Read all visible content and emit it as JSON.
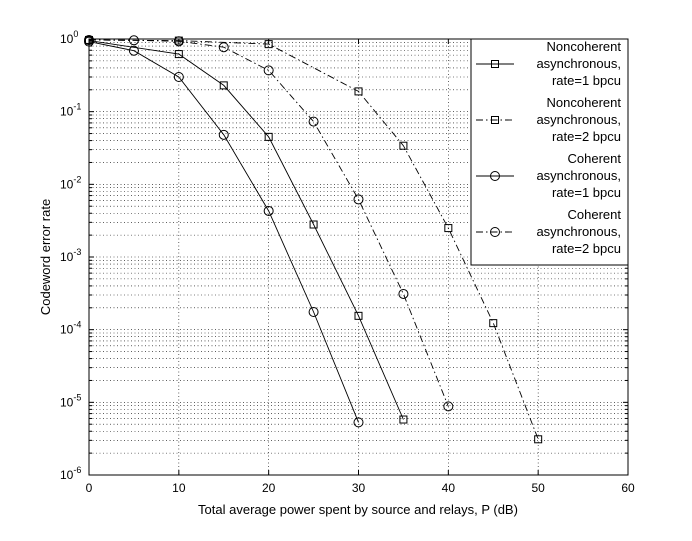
{
  "chart_data": {
    "type": "line",
    "xlabel": "Total average power spent by source and relays, P (dB)",
    "ylabel": "Codeword error rate",
    "xlim": [
      0,
      60
    ],
    "ylim": [
      1e-06,
      1
    ],
    "yscale": "log",
    "grid": true,
    "legend_position": "top-right",
    "x_ticks": [
      "0",
      "10",
      "20",
      "30",
      "40",
      "50",
      "60"
    ],
    "y_ticks": [
      {
        "base": "10",
        "exp": "0"
      },
      {
        "base": "10",
        "exp": "-1"
      },
      {
        "base": "10",
        "exp": "-2"
      },
      {
        "base": "10",
        "exp": "-3"
      },
      {
        "base": "10",
        "exp": "-4"
      },
      {
        "base": "10",
        "exp": "-5"
      },
      {
        "base": "10",
        "exp": "-6"
      }
    ],
    "series": [
      {
        "name_lines": [
          "Noncoherent",
          "asynchronous,",
          "rate=1 bpcu"
        ],
        "marker": "square",
        "dash": "solid",
        "x": [
          0,
          10,
          15,
          20,
          25,
          30,
          35
        ],
        "y": [
          0.95,
          0.62,
          0.23,
          0.045,
          0.0028,
          0.000155,
          5.8e-06
        ]
      },
      {
        "name_lines": [
          "Noncoherent",
          "asynchronous,",
          "rate=2 bpcu"
        ],
        "marker": "square",
        "dash": "dashdot",
        "x": [
          0,
          10,
          20,
          30,
          35,
          40,
          45,
          50
        ],
        "y": [
          0.97,
          0.95,
          0.85,
          0.19,
          0.034,
          0.0025,
          0.000123,
          3.1e-06
        ]
      },
      {
        "name_lines": [
          "Coherent",
          "asynchronous,",
          "rate=1 bpcu"
        ],
        "marker": "circle",
        "dash": "solid",
        "x": [
          0,
          5,
          10,
          15,
          20,
          25,
          30
        ],
        "y": [
          0.92,
          0.69,
          0.3,
          0.048,
          0.0043,
          0.000175,
          5.3e-06
        ]
      },
      {
        "name_lines": [
          "Coherent",
          "asynchronous,",
          "rate=2 bpcu"
        ],
        "marker": "circle",
        "dash": "dashdot",
        "x": [
          0,
          5,
          10,
          15,
          20,
          25,
          30,
          35,
          40
        ],
        "y": [
          0.97,
          0.96,
          0.93,
          0.77,
          0.37,
          0.073,
          0.0062,
          0.00031,
          8.8e-06
        ]
      }
    ]
  }
}
